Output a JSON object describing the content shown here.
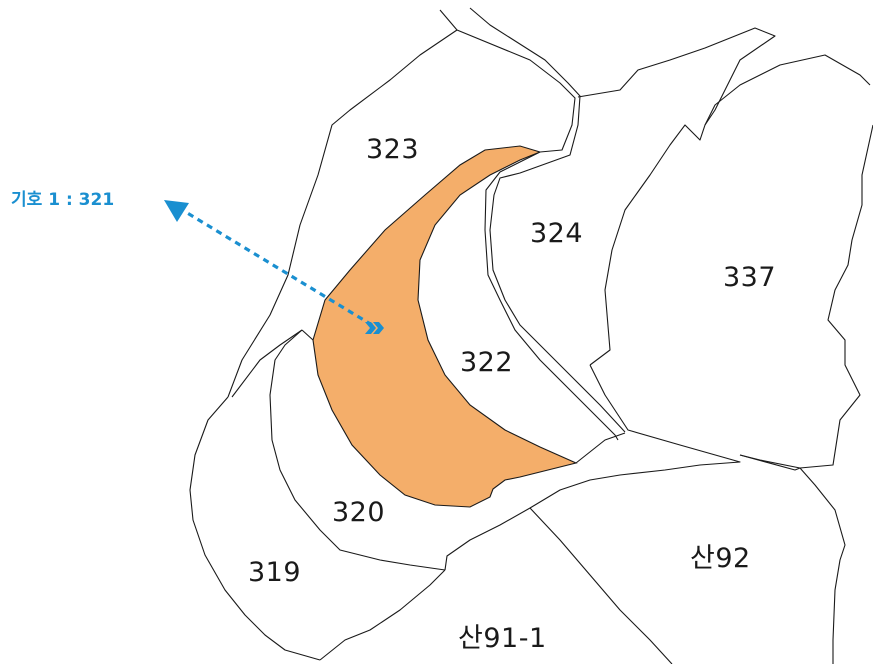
{
  "colors": {
    "highlight_fill": "#F4AE6A",
    "boundary_line": "#1A1A1A",
    "callout": "#1A8FD0"
  },
  "callout": {
    "label": "기호 1 : 321",
    "icon": "arrow-pointer-icon"
  },
  "parcels": [
    {
      "id": "321",
      "label": "",
      "highlighted": true
    },
    {
      "id": "323",
      "label": "323"
    },
    {
      "id": "324",
      "label": "324"
    },
    {
      "id": "337",
      "label": "337"
    },
    {
      "id": "322",
      "label": "322"
    },
    {
      "id": "320",
      "label": "320"
    },
    {
      "id": "319",
      "label": "319"
    },
    {
      "id": "san92",
      "label": "산92"
    },
    {
      "id": "san91-1",
      "label": "산91-1"
    }
  ]
}
